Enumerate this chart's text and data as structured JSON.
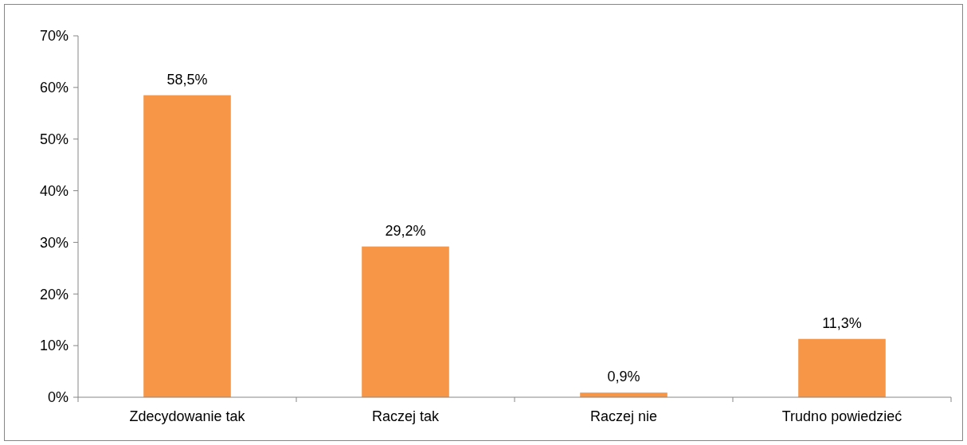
{
  "chart_data": {
    "type": "bar",
    "categories": [
      "Zdecydowanie tak",
      "Raczej tak",
      "Raczej nie",
      "Trudno powiedzieć"
    ],
    "values": [
      58.5,
      29.2,
      0.9,
      11.3
    ],
    "value_labels": [
      "58,5%",
      "29,2%",
      "0,9%",
      "11,3%"
    ],
    "color": "#f79646",
    "ylim": [
      0,
      70
    ],
    "yticks": [
      {
        "value": 0,
        "label": "0%"
      },
      {
        "value": 10,
        "label": "10%"
      },
      {
        "value": 20,
        "label": "20%"
      },
      {
        "value": 30,
        "label": "30%"
      },
      {
        "value": 40,
        "label": "40%"
      },
      {
        "value": 50,
        "label": "50%"
      },
      {
        "value": 60,
        "label": "60%"
      },
      {
        "value": 70,
        "label": "70%"
      }
    ],
    "grid": false
  }
}
